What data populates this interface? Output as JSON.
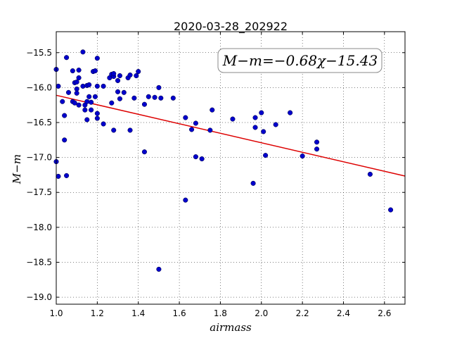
{
  "chart_data": {
    "type": "scatter",
    "title": "2020-03-28_202922",
    "xlabel": "airmass",
    "ylabel": "M−m",
    "xlim": [
      1.0,
      2.7
    ],
    "ylim": [
      -19.1,
      -15.2
    ],
    "y_inverted": true,
    "x_ticks": [
      1.0,
      1.2,
      1.4,
      1.6,
      1.8,
      2.0,
      2.2,
      2.4,
      2.6
    ],
    "x_tick_labels": [
      "1.0",
      "1.2",
      "1.4",
      "1.6",
      "1.8",
      "2.0",
      "2.2",
      "2.4",
      "2.6"
    ],
    "y_ticks": [
      -15.5,
      -16.0,
      -16.5,
      -17.0,
      -17.5,
      -18.0,
      -18.5,
      -19.0
    ],
    "y_tick_labels": [
      "−15.5",
      "−16.0",
      "−16.5",
      "−17.0",
      "−17.5",
      "−18.0",
      "−18.5",
      "−19.0"
    ],
    "grid": true,
    "annotation": "M−m=−0.68χ−15.43",
    "annotation_placement": "top-right",
    "fit": {
      "slope": -0.68,
      "intercept": -15.43,
      "color": "#dd0000"
    },
    "marker_color": "#0000cc",
    "points": [
      {
        "x": 1.0,
        "y": -15.74
      },
      {
        "x": 1.01,
        "y": -15.98
      },
      {
        "x": 1.0,
        "y": -17.06
      },
      {
        "x": 1.01,
        "y": -17.27
      },
      {
        "x": 1.03,
        "y": -16.2
      },
      {
        "x": 1.04,
        "y": -16.4
      },
      {
        "x": 1.04,
        "y": -16.75
      },
      {
        "x": 1.05,
        "y": -17.26
      },
      {
        "x": 1.05,
        "y": -15.57
      },
      {
        "x": 1.06,
        "y": -16.07
      },
      {
        "x": 1.08,
        "y": -15.76
      },
      {
        "x": 1.09,
        "y": -15.93
      },
      {
        "x": 1.08,
        "y": -16.2
      },
      {
        "x": 1.09,
        "y": -16.22
      },
      {
        "x": 1.1,
        "y": -16.02
      },
      {
        "x": 1.1,
        "y": -16.08
      },
      {
        "x": 1.1,
        "y": -15.92
      },
      {
        "x": 1.11,
        "y": -16.25
      },
      {
        "x": 1.11,
        "y": -15.75
      },
      {
        "x": 1.11,
        "y": -15.86
      },
      {
        "x": 1.13,
        "y": -15.98
      },
      {
        "x": 1.13,
        "y": -15.49
      },
      {
        "x": 1.14,
        "y": -16.25
      },
      {
        "x": 1.14,
        "y": -16.32
      },
      {
        "x": 1.15,
        "y": -16.46
      },
      {
        "x": 1.15,
        "y": -16.2
      },
      {
        "x": 1.15,
        "y": -15.97
      },
      {
        "x": 1.16,
        "y": -15.96
      },
      {
        "x": 1.16,
        "y": -16.13
      },
      {
        "x": 1.17,
        "y": -16.32
      },
      {
        "x": 1.17,
        "y": -16.21
      },
      {
        "x": 1.18,
        "y": -15.77
      },
      {
        "x": 1.19,
        "y": -16.13
      },
      {
        "x": 1.19,
        "y": -15.76
      },
      {
        "x": 1.2,
        "y": -15.58
      },
      {
        "x": 1.2,
        "y": -15.98
      },
      {
        "x": 1.2,
        "y": -16.37
      },
      {
        "x": 1.2,
        "y": -16.44
      },
      {
        "x": 1.23,
        "y": -15.98
      },
      {
        "x": 1.23,
        "y": -16.52
      },
      {
        "x": 1.26,
        "y": -15.86
      },
      {
        "x": 1.27,
        "y": -15.81
      },
      {
        "x": 1.27,
        "y": -16.22
      },
      {
        "x": 1.28,
        "y": -15.84
      },
      {
        "x": 1.28,
        "y": -15.8
      },
      {
        "x": 1.28,
        "y": -16.61
      },
      {
        "x": 1.3,
        "y": -15.9
      },
      {
        "x": 1.3,
        "y": -16.06
      },
      {
        "x": 1.31,
        "y": -16.16
      },
      {
        "x": 1.31,
        "y": -15.83
      },
      {
        "x": 1.33,
        "y": -16.07
      },
      {
        "x": 1.35,
        "y": -15.86
      },
      {
        "x": 1.36,
        "y": -15.82
      },
      {
        "x": 1.36,
        "y": -16.61
      },
      {
        "x": 1.38,
        "y": -16.15
      },
      {
        "x": 1.39,
        "y": -15.83
      },
      {
        "x": 1.4,
        "y": -15.77
      },
      {
        "x": 1.43,
        "y": -16.24
      },
      {
        "x": 1.43,
        "y": -16.92
      },
      {
        "x": 1.45,
        "y": -16.13
      },
      {
        "x": 1.48,
        "y": -16.14
      },
      {
        "x": 1.5,
        "y": -16.0
      },
      {
        "x": 1.51,
        "y": -16.15
      },
      {
        "x": 1.5,
        "y": -18.6
      },
      {
        "x": 1.57,
        "y": -16.15
      },
      {
        "x": 1.63,
        "y": -16.43
      },
      {
        "x": 1.63,
        "y": -17.61
      },
      {
        "x": 1.66,
        "y": -16.6
      },
      {
        "x": 1.68,
        "y": -16.51
      },
      {
        "x": 1.68,
        "y": -16.99
      },
      {
        "x": 1.71,
        "y": -17.02
      },
      {
        "x": 1.75,
        "y": -16.61
      },
      {
        "x": 1.76,
        "y": -16.32
      },
      {
        "x": 1.86,
        "y": -16.45
      },
      {
        "x": 1.96,
        "y": -17.37
      },
      {
        "x": 1.97,
        "y": -16.43
      },
      {
        "x": 1.97,
        "y": -16.57
      },
      {
        "x": 2.0,
        "y": -16.36
      },
      {
        "x": 2.01,
        "y": -16.63
      },
      {
        "x": 2.02,
        "y": -16.97
      },
      {
        "x": 2.07,
        "y": -16.53
      },
      {
        "x": 2.14,
        "y": -16.36
      },
      {
        "x": 2.2,
        "y": -16.98
      },
      {
        "x": 2.27,
        "y": -16.78
      },
      {
        "x": 2.27,
        "y": -16.88
      },
      {
        "x": 2.53,
        "y": -17.24
      },
      {
        "x": 2.63,
        "y": -17.75
      }
    ]
  }
}
